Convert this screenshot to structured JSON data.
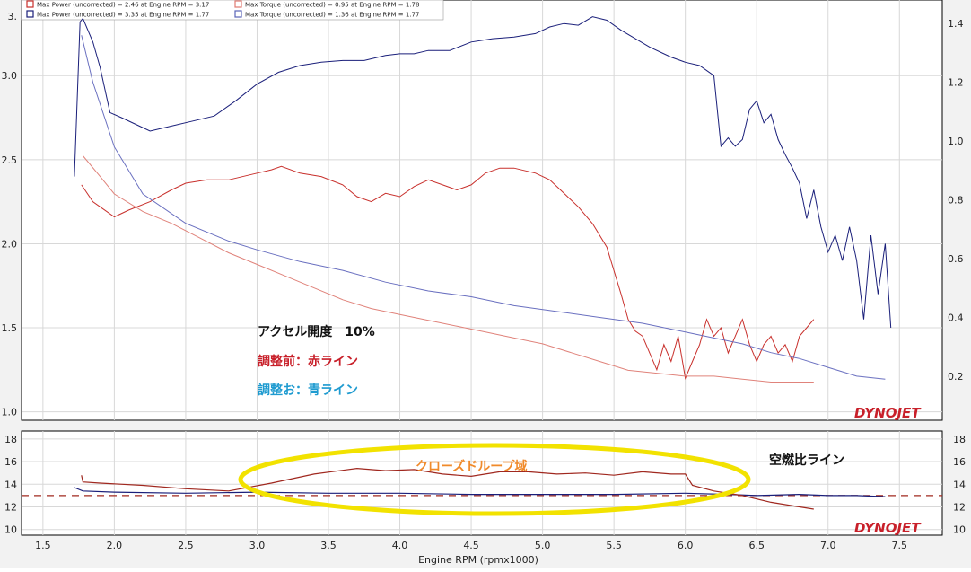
{
  "chart_data": [
    {
      "type": "line",
      "xlabel": "Engine RPM (rpmx1000)",
      "xlim": [
        1.35,
        7.8
      ],
      "x_ticks": [
        "1.5",
        "2.0",
        "2.5",
        "3.0",
        "3.5",
        "4.0",
        "4.5",
        "5.0",
        "5.5",
        "6.0",
        "6.5",
        "7.0",
        "7.5"
      ],
      "left_axis": {
        "ylim": [
          0.95,
          3.45
        ],
        "ticks": [
          "1.0",
          "1.5",
          "2.0",
          "2.5",
          "3.0"
        ],
        "tick_values": [
          1.0,
          1.5,
          2.0,
          2.5,
          3.0
        ],
        "top_partial_label": "3."
      },
      "right_axis": {
        "ylim": [
          0.05,
          1.48
        ],
        "ticks": [
          "0.2",
          "0.4",
          "0.6",
          "0.8",
          "1.0",
          "1.2",
          "1.4"
        ],
        "tick_values": [
          0.2,
          0.4,
          0.6,
          0.8,
          1.0,
          1.2,
          1.4
        ]
      },
      "legend": [
        {
          "label": "Max Power (uncorrected) = 2.46 at Engine RPM = 3.17",
          "color": "#c8302c"
        },
        {
          "label": "Max Torque (uncorrected) = 0.95 at Engine RPM = 1.78",
          "color": "#e07a72"
        },
        {
          "label": "Max Power (uncorrected) = 3.35 at Engine RPM = 1.77",
          "color": "#1a1f7a"
        },
        {
          "label": "Max Torque (uncorrected) = 1.36 at Engine RPM = 1.77",
          "color": "#5a64b8"
        }
      ],
      "series": [
        {
          "axis": "left",
          "color": "#1a1f7a",
          "x": [
            1.72,
            1.76,
            1.78,
            1.85,
            1.9,
            1.97,
            2.05,
            2.15,
            2.25,
            2.4,
            2.55,
            2.7,
            2.85,
            3.0,
            3.15,
            3.3,
            3.45,
            3.6,
            3.75,
            3.9,
            4.0,
            4.1,
            4.2,
            4.35,
            4.5,
            4.65,
            4.8,
            4.95,
            5.05,
            5.15,
            5.25,
            5.35,
            5.45,
            5.55,
            5.65,
            5.75,
            5.9,
            6.0,
            6.1,
            6.2,
            6.25,
            6.3,
            6.35,
            6.4,
            6.45,
            6.5,
            6.55,
            6.6,
            6.65,
            6.7,
            6.75,
            6.8,
            6.85,
            6.9,
            6.95,
            7.0,
            7.05,
            7.1,
            7.15,
            7.2,
            7.25,
            7.3,
            7.35,
            7.4,
            7.44
          ],
          "y": [
            2.4,
            3.32,
            3.34,
            3.2,
            3.05,
            2.78,
            2.75,
            2.71,
            2.67,
            2.7,
            2.73,
            2.76,
            2.85,
            2.95,
            3.02,
            3.06,
            3.08,
            3.09,
            3.09,
            3.12,
            3.13,
            3.13,
            3.15,
            3.15,
            3.2,
            3.22,
            3.23,
            3.25,
            3.29,
            3.31,
            3.3,
            3.35,
            3.33,
            3.27,
            3.22,
            3.17,
            3.11,
            3.08,
            3.06,
            3.0,
            2.58,
            2.63,
            2.58,
            2.62,
            2.8,
            2.85,
            2.72,
            2.77,
            2.62,
            2.53,
            2.45,
            2.36,
            2.15,
            2.32,
            2.1,
            1.95,
            2.05,
            1.9,
            2.1,
            1.9,
            1.55,
            2.05,
            1.7,
            2.0,
            1.5
          ]
        },
        {
          "axis": "left",
          "color": "#c8302c",
          "x": [
            1.77,
            1.85,
            1.9,
            2.0,
            2.1,
            2.25,
            2.4,
            2.5,
            2.65,
            2.8,
            3.0,
            3.1,
            3.17,
            3.3,
            3.45,
            3.6,
            3.7,
            3.8,
            3.9,
            4.0,
            4.1,
            4.2,
            4.3,
            4.4,
            4.5,
            4.6,
            4.7,
            4.8,
            4.95,
            5.05,
            5.15,
            5.25,
            5.35,
            5.45,
            5.55,
            5.6,
            5.65,
            5.7,
            5.75,
            5.8,
            5.85,
            5.9,
            5.95,
            6.0,
            6.05,
            6.1,
            6.15,
            6.2,
            6.25,
            6.3,
            6.35,
            6.4,
            6.45,
            6.5,
            6.55,
            6.6,
            6.65,
            6.7,
            6.75,
            6.8,
            6.85,
            6.9
          ],
          "y": [
            2.35,
            2.25,
            2.22,
            2.16,
            2.2,
            2.25,
            2.32,
            2.36,
            2.38,
            2.38,
            2.42,
            2.44,
            2.46,
            2.42,
            2.4,
            2.35,
            2.28,
            2.25,
            2.3,
            2.28,
            2.34,
            2.38,
            2.35,
            2.32,
            2.35,
            2.42,
            2.45,
            2.45,
            2.42,
            2.38,
            2.3,
            2.22,
            2.12,
            1.98,
            1.7,
            1.55,
            1.48,
            1.45,
            1.35,
            1.25,
            1.4,
            1.3,
            1.45,
            1.2,
            1.3,
            1.4,
            1.55,
            1.45,
            1.5,
            1.35,
            1.45,
            1.55,
            1.4,
            1.3,
            1.4,
            1.45,
            1.35,
            1.4,
            1.3,
            1.45,
            1.5,
            1.55
          ]
        },
        {
          "axis": "right",
          "color": "#6a70c0",
          "x": [
            1.77,
            1.85,
            2.0,
            2.2,
            2.5,
            2.8,
            3.0,
            3.3,
            3.6,
            3.9,
            4.2,
            4.5,
            4.8,
            5.1,
            5.4,
            5.7,
            6.0,
            6.2,
            6.4,
            6.6,
            6.8,
            7.0,
            7.2,
            7.4
          ],
          "y": [
            1.36,
            1.2,
            0.98,
            0.82,
            0.72,
            0.66,
            0.63,
            0.59,
            0.56,
            0.52,
            0.49,
            0.47,
            0.44,
            0.42,
            0.4,
            0.38,
            0.35,
            0.33,
            0.31,
            0.28,
            0.26,
            0.23,
            0.2,
            0.19
          ]
        },
        {
          "axis": "right",
          "color": "#e0837b",
          "x": [
            1.78,
            1.9,
            2.0,
            2.2,
            2.4,
            2.6,
            2.8,
            3.0,
            3.2,
            3.4,
            3.6,
            3.8,
            4.0,
            4.2,
            4.4,
            4.6,
            4.8,
            5.0,
            5.2,
            5.4,
            5.6,
            5.8,
            6.0,
            6.2,
            6.4,
            6.6,
            6.8,
            6.9
          ],
          "y": [
            0.95,
            0.88,
            0.82,
            0.76,
            0.72,
            0.67,
            0.62,
            0.58,
            0.54,
            0.5,
            0.46,
            0.43,
            0.41,
            0.39,
            0.37,
            0.35,
            0.33,
            0.31,
            0.28,
            0.25,
            0.22,
            0.21,
            0.2,
            0.2,
            0.19,
            0.18,
            0.18,
            0.18
          ]
        }
      ],
      "annotations": [
        "アクセル開度　10%",
        "調整前：赤ライン",
        "調整お：青ライン"
      ],
      "logo": "DYNOJET"
    },
    {
      "type": "line",
      "xlim": [
        1.35,
        7.8
      ],
      "ylim": [
        9.5,
        18.7
      ],
      "left_ticks": [
        "10",
        "12",
        "14",
        "16",
        "18"
      ],
      "right_ticks": [
        "10",
        "12",
        "14",
        "16",
        "18"
      ],
      "tick_values": [
        10,
        12,
        14,
        16,
        18
      ],
      "reference_line": 13.0,
      "series": [
        {
          "color": "#1a1f7a",
          "x": [
            1.72,
            1.78,
            2.0,
            2.5,
            3.0,
            3.5,
            4.0,
            4.5,
            5.0,
            5.5,
            6.0,
            6.3,
            6.5,
            6.8,
            7.0,
            7.2,
            7.4
          ],
          "y": [
            13.7,
            13.4,
            13.3,
            13.2,
            13.3,
            13.2,
            13.2,
            13.1,
            13.1,
            13.1,
            13.2,
            13.1,
            13.0,
            13.1,
            13.0,
            13.0,
            12.9
          ]
        },
        {
          "color": "#a0281f",
          "x": [
            1.77,
            1.78,
            1.9,
            2.2,
            2.5,
            2.8,
            3.1,
            3.4,
            3.7,
            3.9,
            4.1,
            4.3,
            4.5,
            4.7,
            4.9,
            5.1,
            5.3,
            5.5,
            5.7,
            5.9,
            6.0,
            6.05,
            6.2,
            6.4,
            6.6,
            6.8,
            6.9
          ],
          "y": [
            14.8,
            14.2,
            14.1,
            13.9,
            13.6,
            13.4,
            14.1,
            14.9,
            15.4,
            15.2,
            15.3,
            14.9,
            14.7,
            15.1,
            15.1,
            14.9,
            15.0,
            14.8,
            15.1,
            14.9,
            14.9,
            13.9,
            13.4,
            13.0,
            12.4,
            12.0,
            11.8
          ]
        }
      ],
      "annotations": [
        "クローズドループ域",
        "空燃比ライン"
      ],
      "highlight_ellipse": {
        "color": "#f2e200",
        "x_range": [
          2.8,
          6.6
        ],
        "y_range": [
          11.3,
          16.9
        ]
      },
      "logo": "DYNOJET"
    }
  ]
}
